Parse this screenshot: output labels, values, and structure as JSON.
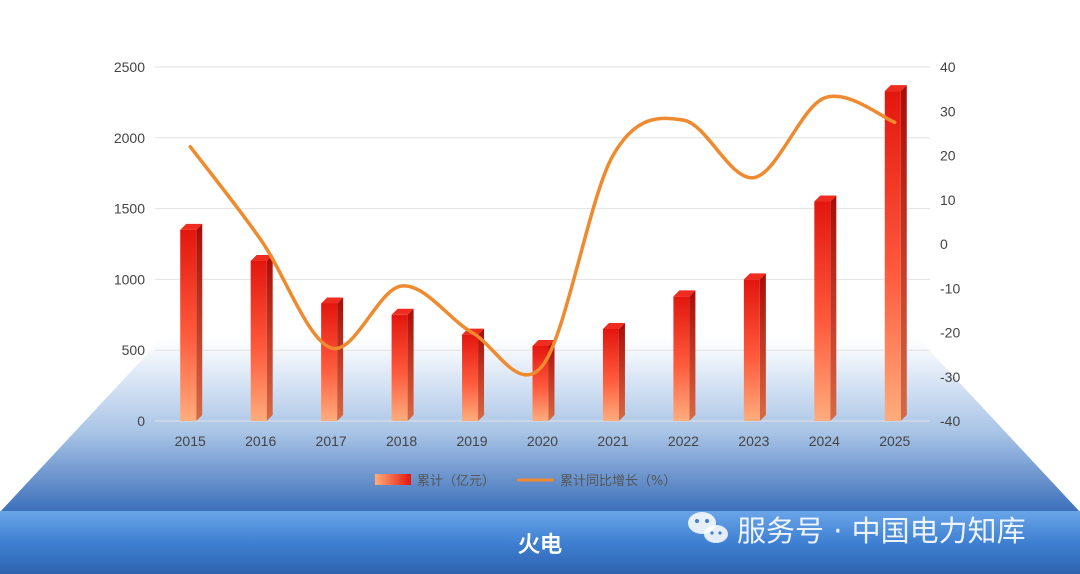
{
  "footer": {
    "title": "火电"
  },
  "watermark": {
    "text": "服务号 · 中国电力知库",
    "icon": "wechat-icon"
  },
  "colors": {
    "bar_top": "#e3160e",
    "bar_bottom": "#ffad7d",
    "line": "#ef8a2e",
    "banner": "#3f80d2",
    "floor_top": "#eef4fb",
    "floor_bottom": "#3d72bd"
  },
  "chart_data": {
    "type": "bar",
    "categories": [
      "2015",
      "2016",
      "2017",
      "2018",
      "2019",
      "2020",
      "2021",
      "2022",
      "2023",
      "2024",
      "2025"
    ],
    "series": [
      {
        "name": "累计（亿元）",
        "type": "bar",
        "axis": "left",
        "values": [
          1350,
          1130,
          830,
          750,
          610,
          530,
          650,
          880,
          1000,
          1550,
          2330
        ]
      },
      {
        "name": "累计同比增长（%）",
        "type": "line",
        "axis": "right",
        "values": [
          22,
          1,
          -23.5,
          -9.5,
          -20,
          -27.5,
          20,
          28,
          15,
          33,
          27.5
        ]
      }
    ],
    "y_left": {
      "range": [
        0,
        2500
      ],
      "ticks": [
        "0",
        "500",
        "1000",
        "1500",
        "2000",
        "2500"
      ]
    },
    "y_right": {
      "range": [
        -40,
        40
      ],
      "ticks": [
        "-40",
        "-30",
        "-20",
        "-10",
        "0",
        "10",
        "20",
        "30",
        "40"
      ]
    },
    "grid": true,
    "legend_position": "bottom"
  }
}
